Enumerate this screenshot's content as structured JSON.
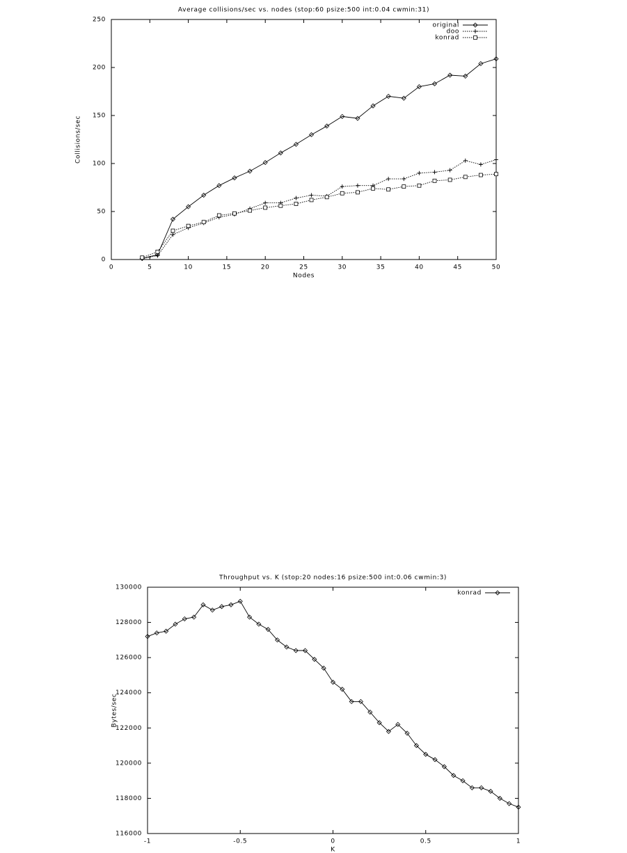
{
  "chart_data": [
    {
      "type": "line",
      "title": "Average collisions/sec vs. nodes (stop:60 psize:500 int:0.04 cwmin:31)",
      "xlabel": "Nodes",
      "ylabel": "Collisions/sec",
      "x": [
        4,
        6,
        8,
        10,
        12,
        14,
        16,
        18,
        20,
        22,
        24,
        26,
        28,
        30,
        32,
        34,
        36,
        38,
        40,
        42,
        44,
        46,
        48,
        50
      ],
      "series": [
        {
          "name": "original",
          "color": "#000000",
          "marker": "diamond",
          "dash": "solid",
          "values": [
            1,
            5,
            42,
            55,
            67,
            77,
            85,
            92,
            101,
            111,
            120,
            130,
            139,
            149,
            147,
            160,
            170,
            168,
            180,
            183,
            192,
            191,
            204,
            209
          ]
        },
        {
          "name": "doo",
          "color": "#000000",
          "marker": "plus",
          "dash": "dotted",
          "values": [
            1,
            4,
            26,
            33,
            38,
            44,
            47,
            53,
            59,
            59,
            64,
            67,
            66,
            76,
            77,
            77,
            84,
            84,
            90,
            91,
            93,
            103,
            99,
            104
          ]
        },
        {
          "name": "konrad",
          "color": "#000000",
          "marker": "square",
          "dash": "dotted",
          "values": [
            2,
            8,
            30,
            35,
            39,
            46,
            48,
            51,
            54,
            56,
            58,
            62,
            65,
            69,
            70,
            74,
            73,
            76,
            77,
            82,
            83,
            86,
            88,
            89
          ]
        }
      ],
      "xlim": [
        0,
        50
      ],
      "xticks": [
        0,
        5,
        10,
        15,
        20,
        25,
        30,
        35,
        40,
        45,
        50
      ],
      "ylim": [
        0,
        250
      ],
      "yticks": [
        0,
        50,
        100,
        150,
        200,
        250
      ],
      "legend": "top-right",
      "grid": false
    },
    {
      "type": "line",
      "title": "Throughput vs. K (stop:20 nodes:16 psize:500 int:0.06 cwmin:3)",
      "xlabel": "K",
      "ylabel": "Bytes/sec",
      "x": [
        -1,
        -0.95,
        -0.9,
        -0.85,
        -0.8,
        -0.75,
        -0.7,
        -0.65,
        -0.6,
        -0.55,
        -0.5,
        -0.45,
        -0.4,
        -0.35,
        -0.3,
        -0.25,
        -0.2,
        -0.15,
        -0.1,
        -0.05,
        0,
        0.05,
        0.1,
        0.15,
        0.2,
        0.25,
        0.3,
        0.35,
        0.4,
        0.45,
        0.5,
        0.55,
        0.6,
        0.65,
        0.7,
        0.75,
        0.8,
        0.85,
        0.9,
        0.95,
        1
      ],
      "series": [
        {
          "name": "konrad",
          "color": "#000000",
          "marker": "diamond",
          "dash": "solid",
          "values": [
            127200,
            127400,
            127500,
            127900,
            128200,
            128300,
            129000,
            128700,
            128900,
            129000,
            129200,
            128300,
            127900,
            127600,
            127000,
            126600,
            126400,
            126400,
            125900,
            125400,
            124600,
            124200,
            123500,
            123500,
            122900,
            122300,
            121800,
            122200,
            121700,
            121000,
            120500,
            120200,
            119800,
            119300,
            119000,
            118600,
            118600,
            118400,
            118000,
            117700,
            117500
          ]
        }
      ],
      "xlim": [
        -1,
        1
      ],
      "xticks": [
        -1,
        -0.5,
        0,
        0.5,
        1
      ],
      "ylim": [
        116000,
        130000
      ],
      "yticks": [
        116000,
        118000,
        120000,
        122000,
        124000,
        126000,
        128000,
        130000
      ],
      "legend": "top-right",
      "grid": false
    }
  ]
}
